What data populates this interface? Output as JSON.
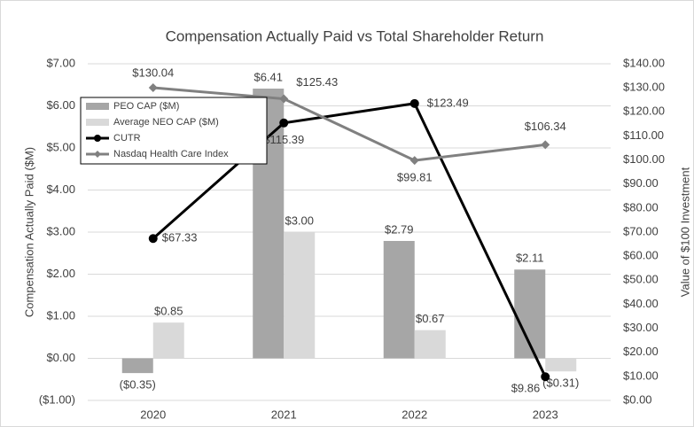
{
  "chart_data": {
    "type": "bar",
    "title": "Compensation Actually Paid vs Total Shareholder Return",
    "y_label": "Compensation Actually Paid ($M)",
    "y2_label": "Value of $100 Investment",
    "categories": [
      "2020",
      "2021",
      "2022",
      "2023"
    ],
    "ylim": [
      -1,
      7
    ],
    "yticks": [
      {
        "value": -1,
        "label": "($1.00)"
      },
      {
        "value": 0,
        "label": "$0.00"
      },
      {
        "value": 1,
        "label": "$1.00"
      },
      {
        "value": 2,
        "label": "$2.00"
      },
      {
        "value": 3,
        "label": "$3.00"
      },
      {
        "value": 4,
        "label": "$4.00"
      },
      {
        "value": 5,
        "label": "$5.00"
      },
      {
        "value": 6,
        "label": "$6.00"
      },
      {
        "value": 7,
        "label": "$7.00"
      }
    ],
    "y2lim": [
      0,
      140
    ],
    "y2ticks": [
      {
        "value": 0,
        "label": "$0.00"
      },
      {
        "value": 10,
        "label": "$10.00"
      },
      {
        "value": 20,
        "label": "$20.00"
      },
      {
        "value": 30,
        "label": "$30.00"
      },
      {
        "value": 40,
        "label": "$40.00"
      },
      {
        "value": 50,
        "label": "$50.00"
      },
      {
        "value": 60,
        "label": "$60.00"
      },
      {
        "value": 70,
        "label": "$70.00"
      },
      {
        "value": 80,
        "label": "$80.00"
      },
      {
        "value": 90,
        "label": "$90.00"
      },
      {
        "value": 100,
        "label": "$100.00"
      },
      {
        "value": 110,
        "label": "$110.00"
      },
      {
        "value": 120,
        "label": "$120.00"
      },
      {
        "value": 130,
        "label": "$130.00"
      },
      {
        "value": 140,
        "label": "$140.00"
      }
    ],
    "grid": true,
    "legend": "upper left",
    "series": [
      {
        "name": "PEO CAP ($M)",
        "type": "bar",
        "color": "#a6a6a6",
        "values": [
          -0.35,
          6.41,
          2.79,
          2.11
        ],
        "value_labels": [
          "($0.35)",
          "$6.41",
          "$2.79",
          "$2.11"
        ]
      },
      {
        "name": "Average NEO CAP ($M)",
        "type": "bar",
        "color": "#d9d9d9",
        "values": [
          0.85,
          3.0,
          0.67,
          -0.31
        ],
        "value_labels": [
          "$0.85",
          "$3.00",
          "$0.67",
          "($0.31)"
        ]
      },
      {
        "name": "CUTR",
        "type": "line",
        "axis": "y2",
        "color": "#000000",
        "values": [
          67.33,
          115.39,
          123.49,
          9.86
        ],
        "value_labels": [
          "$67.33",
          "$115.39",
          "$123.49",
          "$9.86"
        ]
      },
      {
        "name": "Nasdaq Health Care Index",
        "type": "line",
        "axis": "y2",
        "color": "#808080",
        "values": [
          130.04,
          125.43,
          99.81,
          106.34
        ],
        "value_labels": [
          "$130.04",
          "$125.43",
          "$99.81",
          "$106.34"
        ]
      }
    ]
  }
}
